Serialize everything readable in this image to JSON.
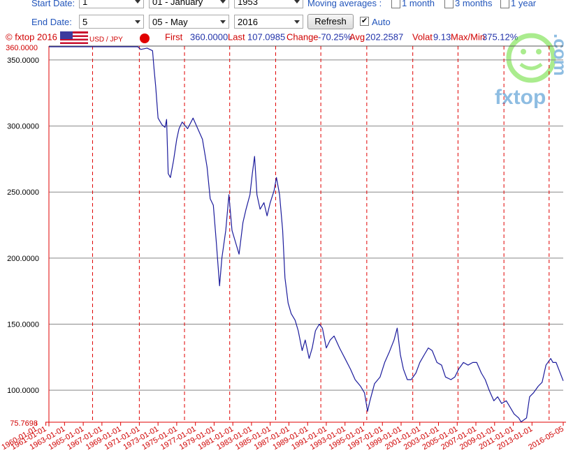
{
  "controls": {
    "start_label": "Start Date:",
    "start_day": "1",
    "start_month": "01 - January",
    "start_year": "1953",
    "end_label": "End Date:",
    "end_day": "5",
    "end_month": "05 - May",
    "end_year": "2016",
    "refresh": "Refresh",
    "auto": {
      "label": "Auto",
      "checked": true
    },
    "moving_label": "Moving averages :",
    "moving": [
      {
        "label": "1 month",
        "checked": false
      },
      {
        "label": "3 months",
        "checked": false
      },
      {
        "label": "1 year",
        "checked": false
      }
    ]
  },
  "info": {
    "copyright": "© fxtop 2016",
    "pair": "USD / JPY",
    "stats": [
      {
        "label": "First",
        "value": "360.0000"
      },
      {
        "label": "Last",
        "value": "107.0985"
      },
      {
        "label": "Change",
        "value": "-70.25%"
      },
      {
        "label": "Avg",
        "value": "202.2587"
      },
      {
        "label": "Volat",
        "value": "9.13"
      },
      {
        "label": "Max/Min",
        "value": "375.12%"
      }
    ]
  },
  "logo": {
    "text": "fxtop",
    "suffix": ".com"
  },
  "chart_data": {
    "type": "line",
    "xlim": [
      "1961-05-01",
      "2016-05-05"
    ],
    "ylim": [
      75.7698,
      360
    ],
    "yticks": [
      {
        "value": 75.7698,
        "label": "75.7698"
      },
      {
        "value": 100,
        "label": "100.0000"
      },
      {
        "value": 150,
        "label": "150.0000"
      },
      {
        "value": 200,
        "label": "200.0000"
      },
      {
        "value": 250,
        "label": "250.0000"
      },
      {
        "value": 300,
        "label": "300.0000"
      },
      {
        "value": 350,
        "label": "350.0000"
      },
      {
        "value": 360,
        "label": "360.0000"
      }
    ],
    "xticks": [
      "1960-01-01",
      "1961-01-01",
      "1963-01-01",
      "1965-01-01",
      "1967-01-01",
      "1969-01-01",
      "1971-01-01",
      "1973-01-01",
      "1975-01-01",
      "1977-01-01",
      "1979-01-01",
      "1981-01-01",
      "1983-01-01",
      "1985-01-01",
      "1987-01-01",
      "1989-01-01",
      "1991-01-01",
      "1993-01-01",
      "1995-01-01",
      "1997-01-01",
      "1999-01-01",
      "2001-01-01",
      "2003-01-01",
      "2005-01-01",
      "2007-01-01",
      "2009-01-01",
      "2011-01-01",
      "2013-01-01",
      "2016-05-05"
    ],
    "xgrid": [
      "1966-01-01",
      "1971-01-01",
      "1975-11-01",
      "1980-09-01",
      "1985-08-01",
      "1990-06-01",
      "1995-05-01",
      "2000-04-01",
      "2005-02-01",
      "2010-01-01",
      "2014-11-01"
    ],
    "grid": true,
    "series": [
      {
        "name": "USD / JPY",
        "color": "#1c1c9c",
        "x": [
          "1961-05-01",
          "1970-11-01",
          "1971-03-01",
          "1971-11-01",
          "1972-06-01",
          "1972-08-01",
          "1972-10-01",
          "1973-01-01",
          "1973-06-01",
          "1973-10-01",
          "1973-12-01",
          "1974-02-01",
          "1974-05-01",
          "1974-09-01",
          "1975-01-01",
          "1975-04-01",
          "1975-08-01",
          "1976-03-01",
          "1976-10-01",
          "1977-04-01",
          "1977-10-01",
          "1978-04-01",
          "1978-08-01",
          "1978-12-01",
          "1979-04-01",
          "1979-08-01",
          "1979-11-01",
          "1980-04-01",
          "1980-08-01",
          "1980-12-01",
          "1981-05-01",
          "1981-09-01",
          "1982-02-01",
          "1982-06-01",
          "1982-11-01",
          "1983-02-01",
          "1983-05-01",
          "1983-08-01",
          "1983-12-01",
          "1984-05-01",
          "1984-09-01",
          "1985-01-01",
          "1985-06-01",
          "1985-09-01",
          "1986-01-01",
          "1986-05-01",
          "1986-08-01",
          "1986-12-01",
          "1987-04-01",
          "1987-09-01",
          "1988-01-01",
          "1988-06-01",
          "1988-10-01",
          "1989-03-01",
          "1989-07-01",
          "1989-11-01",
          "1990-04-01",
          "1990-08-01",
          "1991-01-01",
          "1991-06-01",
          "1991-11-01",
          "1992-06-01",
          "1993-01-01",
          "1993-08-01",
          "1994-02-01",
          "1994-09-01",
          "1995-02-01",
          "1995-06-01",
          "1995-09-01",
          "1996-03-01",
          "1996-10-01",
          "1997-04-01",
          "1997-10-01",
          "1998-04-01",
          "1998-08-01",
          "1998-12-01",
          "1999-04-01",
          "1999-09-01",
          "2000-02-01",
          "2000-08-01",
          "2001-01-01",
          "2001-07-01",
          "2001-12-01",
          "2002-05-01",
          "2002-11-01",
          "2003-05-01",
          "2003-10-01",
          "2004-05-01",
          "2004-10-01",
          "2005-03-01",
          "2005-09-01",
          "2006-03-01",
          "2006-09-01",
          "2007-02-01",
          "2007-08-01",
          "2008-01-01",
          "2008-06-01",
          "2008-12-01",
          "2009-05-01",
          "2009-10-01",
          "2010-04-01",
          "2010-09-01",
          "2011-02-01",
          "2011-08-01",
          "2011-11-01",
          "2012-06-01",
          "2012-10-01",
          "2013-03-01",
          "2013-09-01",
          "2014-02-01",
          "2014-07-01",
          "2015-01-01",
          "2015-04-01",
          "2015-08-01",
          "2016-05-05"
        ],
        "values": [
          360,
          360,
          358,
          359,
          357,
          343,
          330,
          306,
          301,
          299,
          305,
          264,
          261,
          274,
          290,
          298,
          303,
          298,
          306,
          298,
          290,
          269,
          245,
          240,
          211,
          179,
          200,
          221,
          248,
          221,
          211,
          203,
          227,
          237,
          248,
          264,
          277,
          248,
          237,
          242,
          232,
          242,
          251,
          261,
          248,
          221,
          185,
          166,
          158,
          153,
          145,
          130,
          138,
          124,
          132,
          145,
          150,
          147,
          132,
          138,
          141,
          132,
          124,
          116,
          108,
          103,
          98,
          84,
          92,
          105,
          110,
          121,
          129,
          138,
          147,
          127,
          116,
          108,
          108,
          113,
          121,
          127,
          132,
          130,
          121,
          119,
          110,
          108,
          110,
          116,
          121,
          119,
          121,
          121,
          113,
          108,
          100,
          92,
          95,
          90,
          92,
          87,
          82,
          79,
          76,
          79,
          95,
          98,
          103,
          106,
          119,
          124,
          121,
          121,
          107.0985
        ]
      }
    ]
  }
}
